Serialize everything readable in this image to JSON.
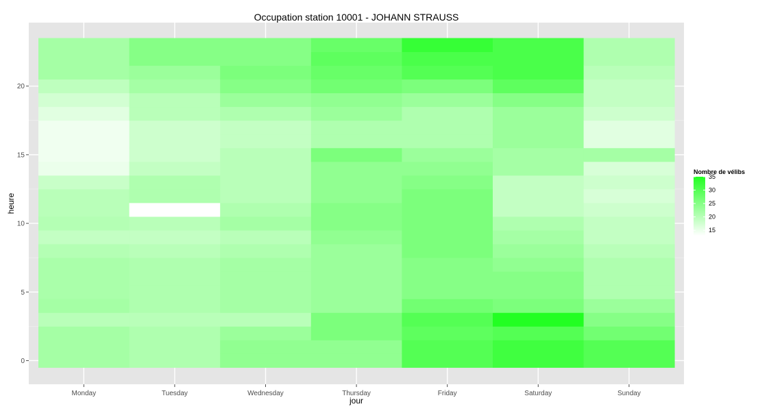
{
  "chart_data": {
    "type": "heatmap",
    "title": "Occupation station 10001 - JOHANN STRAUSS",
    "xlabel": "jour",
    "ylabel": "heure",
    "x_categories": [
      "Monday",
      "Tuesday",
      "Wednesday",
      "Thursday",
      "Friday",
      "Saturday",
      "Sunday"
    ],
    "y_values": [
      0,
      1,
      2,
      3,
      4,
      5,
      6,
      7,
      8,
      9,
      10,
      11,
      12,
      13,
      14,
      15,
      16,
      17,
      18,
      19,
      20,
      21,
      22,
      23
    ],
    "y_ticks": [
      0,
      5,
      10,
      15,
      20
    ],
    "ylim": [
      -0.5,
      23.5
    ],
    "grid": true,
    "color_scale": {
      "low": "#ffffff",
      "high": "#22ff22",
      "min": 13,
      "max": 35
    },
    "legend": {
      "title": "Nombre de vélibs",
      "placement": "right",
      "ticks": [
        15,
        20,
        25,
        30,
        35
      ]
    },
    "values": {
      "Monday": [
        22,
        22,
        22,
        20,
        22,
        21.5,
        21.5,
        21.5,
        20.5,
        19,
        20.5,
        20,
        20,
        18.5,
        15,
        14.5,
        14.5,
        14.5,
        16,
        17.5,
        19.5,
        22,
        22,
        22
      ],
      "Tuesday": [
        21,
        21,
        21,
        20,
        21,
        21,
        21,
        21,
        20,
        19,
        20,
        12,
        21,
        21,
        19,
        18,
        18,
        18,
        20,
        20,
        22,
        23,
        25,
        25
      ],
      "Wednesday": [
        24,
        24,
        23,
        20,
        22,
        22,
        22,
        22,
        21,
        20,
        22,
        21,
        20,
        20,
        20,
        20,
        19,
        19,
        21,
        23,
        25,
        26,
        25,
        25
      ],
      "Thursday": [
        24,
        24,
        26,
        26,
        23,
        23,
        23,
        23,
        23,
        24,
        25,
        25,
        24,
        24,
        24,
        26,
        21,
        21,
        23,
        24,
        27,
        28,
        29,
        28
      ],
      "Friday": [
        30,
        30,
        29,
        30,
        27,
        25,
        25,
        25,
        26,
        26,
        26,
        26,
        26,
        25,
        24,
        23,
        21,
        21,
        21,
        23,
        26,
        30,
        31,
        33
      ],
      "Saturday": [
        32,
        32,
        30,
        35,
        26,
        25,
        25,
        24,
        23,
        22,
        21,
        19,
        19,
        19,
        22,
        22,
        23,
        23,
        23,
        25,
        29,
        31,
        31,
        31
      ],
      "Sunday": [
        30,
        30,
        27,
        25,
        23,
        21,
        21,
        21,
        20,
        19,
        19,
        18,
        17,
        18,
        17,
        22,
        16,
        16,
        18,
        19,
        19,
        20,
        21,
        21
      ]
    }
  }
}
